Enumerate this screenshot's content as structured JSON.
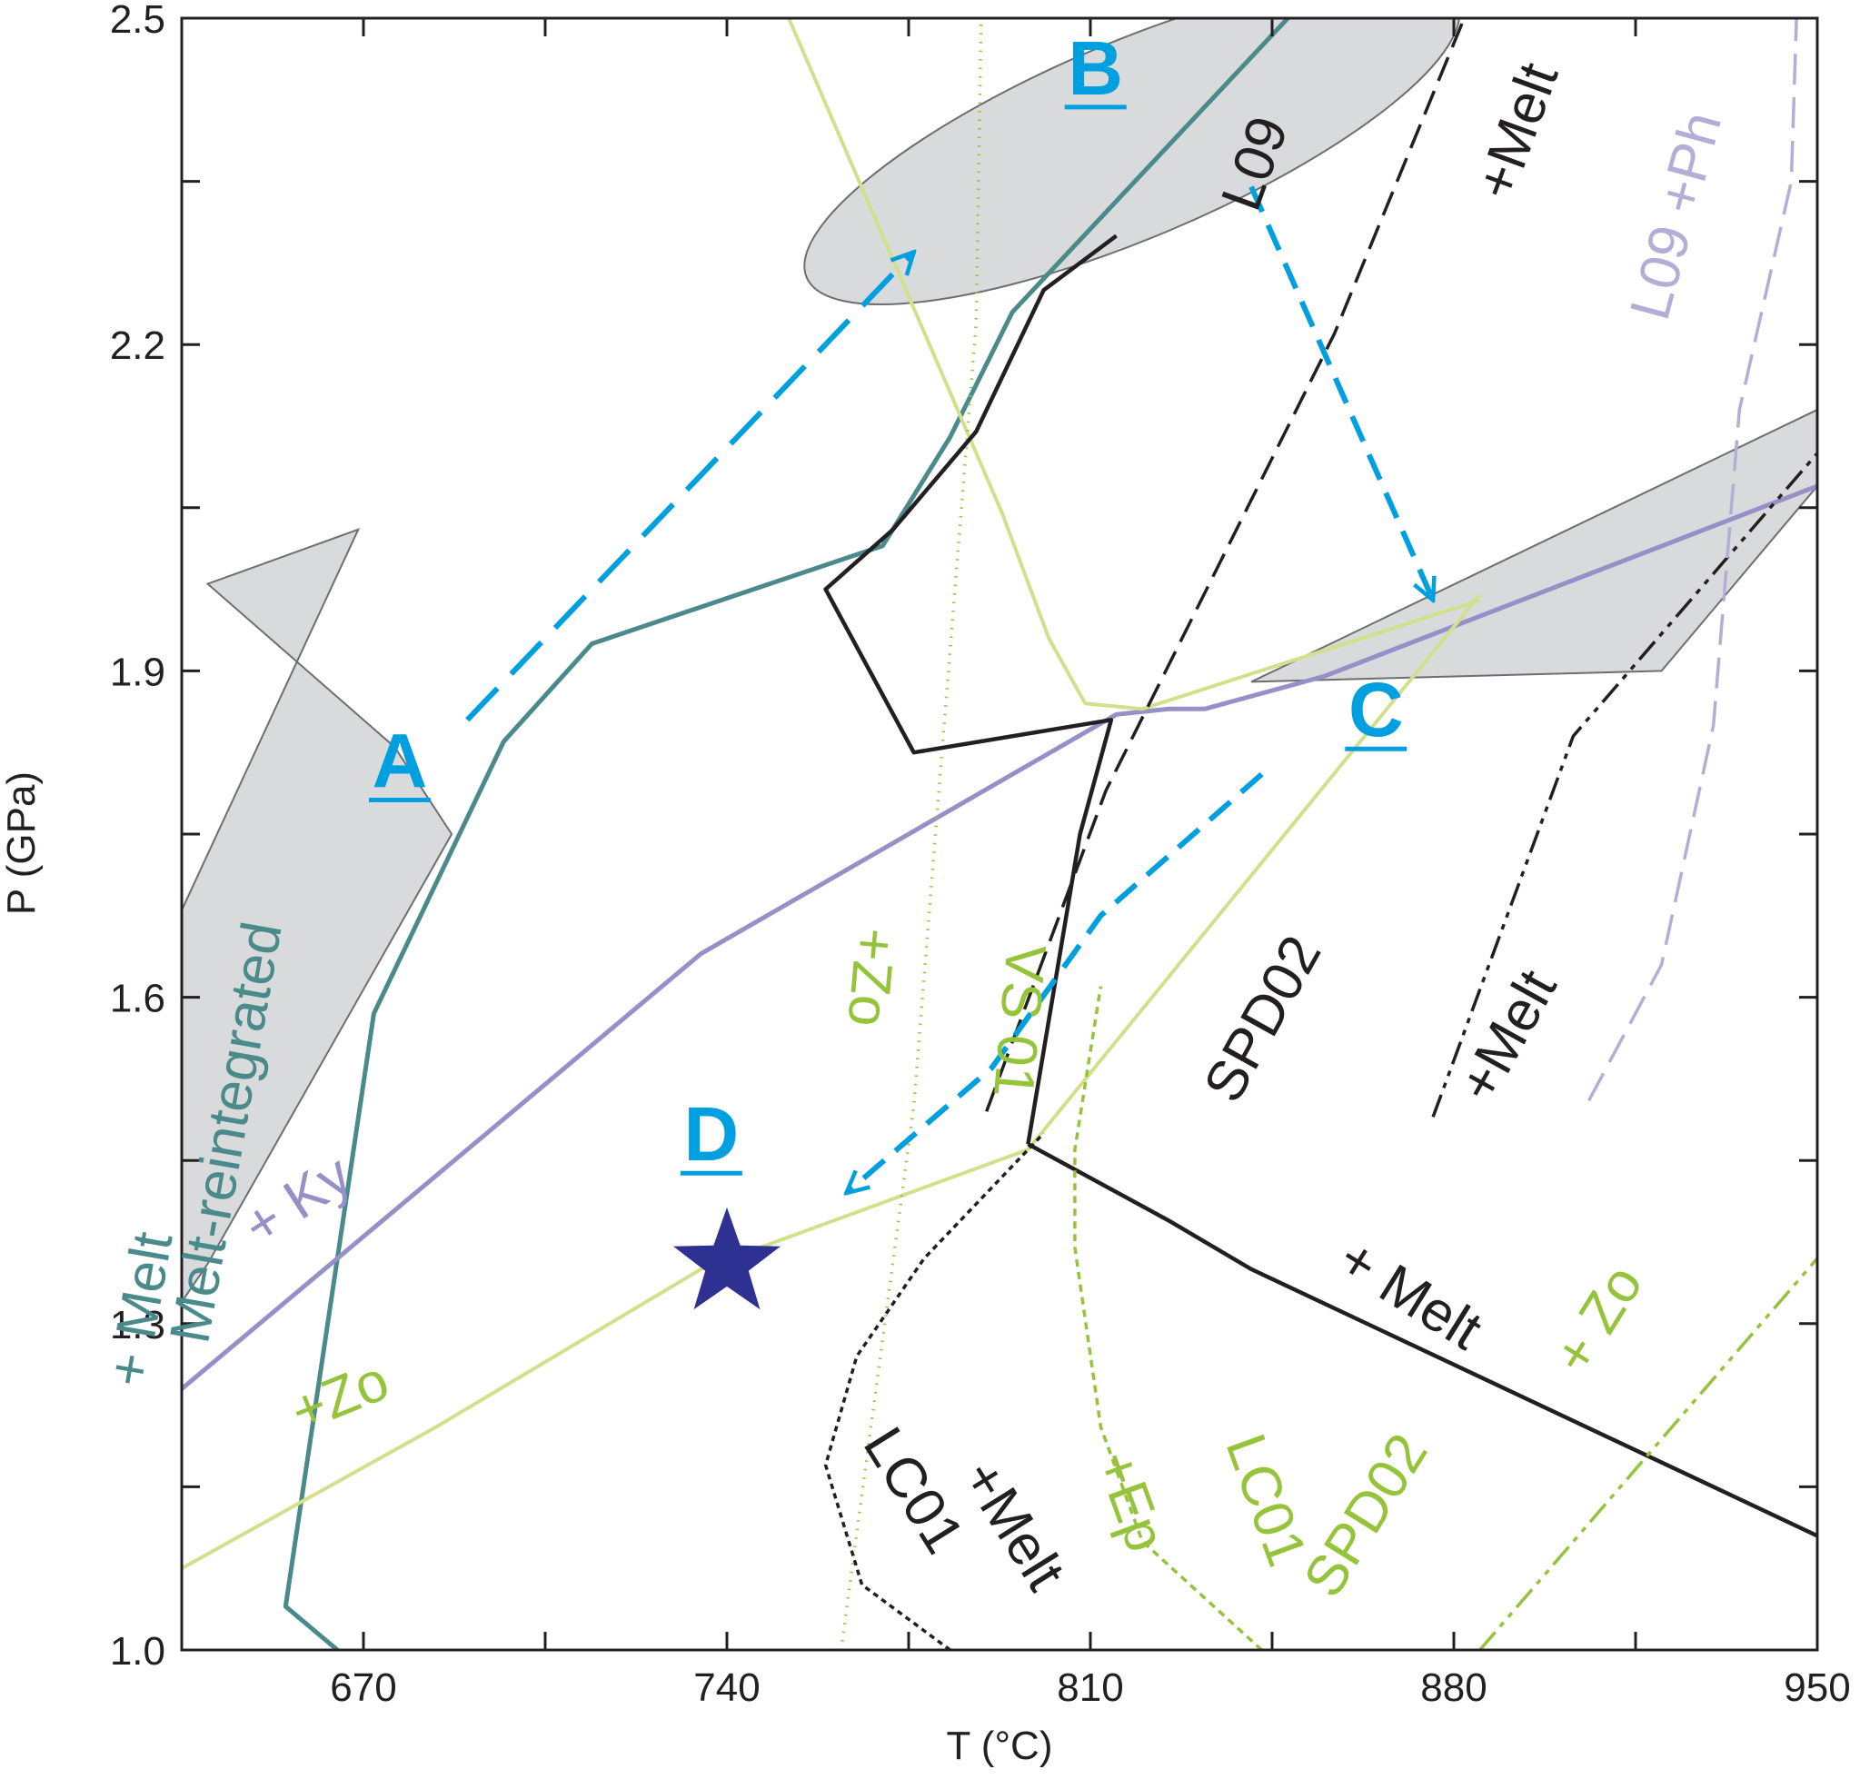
{
  "chart_data": {
    "type": "line",
    "xlabel": "T (°C)",
    "ylabel": "P (GPa)",
    "xlim": [
      635,
      950
    ],
    "ylim": [
      1.0,
      2.5
    ],
    "xticks": [
      {
        "v": 670,
        "label": "670"
      },
      {
        "v": 740,
        "label": "740"
      },
      {
        "v": 810,
        "label": "810"
      },
      {
        "v": 880,
        "label": "880"
      },
      {
        "v": 950,
        "label": "950"
      }
    ],
    "yticks": [
      {
        "v": 1.0,
        "label": "1.0"
      },
      {
        "v": 1.3,
        "label": "1.3"
      },
      {
        "v": 1.6,
        "label": "1.6"
      },
      {
        "v": 1.9,
        "label": "1.9"
      },
      {
        "v": 2.2,
        "label": "2.2"
      },
      {
        "v": 2.5,
        "label": "2.5"
      }
    ],
    "minor_xticks": [
      635,
      705,
      775,
      845,
      915
    ],
    "minor_yticks": [
      1.15,
      1.45,
      1.75,
      2.05,
      2.35
    ],
    "grid": false,
    "fields": [
      {
        "name": "A",
        "color": "#d9dadb",
        "points": [
          [
            635,
            1.32
          ],
          [
            640,
            1.355
          ],
          [
            687,
            1.75
          ],
          [
            676,
            1.83
          ],
          [
            640,
            1.98
          ],
          [
            669,
            2.03
          ],
          [
            635,
            1.68
          ]
        ]
      },
      {
        "name": "B",
        "color": "#d9dadb",
        "ellipse": {
          "cx": 818,
          "cy": 2.388,
          "rx": 68,
          "ry": 0.09,
          "angle": -0.4
        }
      },
      {
        "name": "C",
        "color": "#d9dadb",
        "points": [
          [
            841,
            1.89
          ],
          [
            920,
            1.9
          ],
          [
            950,
            2.07
          ],
          [
            950,
            2.14
          ]
        ]
      }
    ],
    "series": [
      {
        "name": "Melt-reintegrated + Melt",
        "color": "#4a8a8b",
        "width": 5,
        "dash": "",
        "points": [
          [
            665,
            1.0
          ],
          [
            655,
            1.04
          ],
          [
            672,
            1.585
          ],
          [
            697,
            1.835
          ],
          [
            714,
            1.925
          ],
          [
            770,
            2.015
          ],
          [
            783,
            2.115
          ],
          [
            795,
            2.23
          ],
          [
            850,
            2.51
          ]
        ]
      },
      {
        "name": "+ Ky",
        "color": "#9590c7",
        "width": 5,
        "dash": "",
        "points": [
          [
            635,
            1.24
          ],
          [
            735,
            1.64
          ],
          [
            815,
            1.86
          ],
          [
            825,
            1.865
          ],
          [
            832,
            1.865
          ],
          [
            855,
            1.895
          ],
          [
            950,
            2.07
          ]
        ]
      },
      {
        "name": "+Zo",
        "color": "#d2e08c",
        "width": 4,
        "dash": "",
        "points": [
          [
            635,
            1.075
          ],
          [
            684,
            1.205
          ],
          [
            735,
            1.35
          ],
          [
            798,
            1.46
          ],
          [
            885,
            1.97
          ]
        ]
      },
      {
        "name": "VS01",
        "color": "#d2e08c",
        "width": 4,
        "dash": "",
        "points": [
          [
            751,
            2.51
          ],
          [
            793,
            2.045
          ],
          [
            802,
            1.93
          ],
          [
            809,
            1.87
          ],
          [
            820,
            1.865
          ],
          [
            885,
            1.965
          ]
        ]
      },
      {
        "name": "+Zo VS01",
        "color": "#95c33a",
        "width": 3.5,
        "dash": "1.5 8",
        "points": [
          [
            762,
            1.0
          ],
          [
            776,
            1.5
          ],
          [
            788,
            2.22
          ],
          [
            789,
            2.51
          ]
        ]
      },
      {
        "name": "+ Melt",
        "color": "#231f20",
        "width": 4.5,
        "dash": "",
        "points": [
          [
            798,
            1.465
          ],
          [
            808,
            1.75
          ],
          [
            814,
            1.855
          ],
          [
            776,
            1.825
          ],
          [
            759,
            1.975
          ],
          [
            772,
            2.03
          ],
          [
            788,
            2.12
          ],
          [
            801,
            2.25
          ],
          [
            815,
            2.3
          ]
        ]
      },
      {
        "name": "+ Melt",
        "color": "#231f20",
        "width": 4.5,
        "dash": "",
        "points": [
          [
            798,
            1.465
          ],
          [
            825,
            1.395
          ],
          [
            841,
            1.35
          ],
          [
            950,
            1.105
          ]
        ]
      },
      {
        "name": "L09 +Melt",
        "color": "#231f20",
        "width": 3.5,
        "dash": "28 12",
        "points": [
          [
            790,
            1.495
          ],
          [
            813,
            1.79
          ],
          [
            857,
            2.21
          ],
          [
            882,
            2.5
          ]
        ]
      },
      {
        "name": "LC01 +Melt",
        "color": "#231f20",
        "width": 3.5,
        "dash": "6 5",
        "points": [
          [
            783,
            1.0
          ],
          [
            766,
            1.06
          ],
          [
            759,
            1.17
          ],
          [
            765,
            1.27
          ],
          [
            778,
            1.36
          ],
          [
            801,
            1.475
          ]
        ]
      },
      {
        "name": "LC01 +Ep",
        "color": "#95c33a",
        "width": 3.5,
        "dash": "8 6",
        "points": [
          [
            843,
            1.0
          ],
          [
            820,
            1.1
          ],
          [
            812,
            1.205
          ],
          [
            807,
            1.37
          ],
          [
            807,
            1.46
          ],
          [
            812,
            1.61
          ]
        ]
      },
      {
        "name": "SPD02 + Zo",
        "color": "#95c33a",
        "width": 3.5,
        "dash": "26 8 6 8 6 8",
        "points": [
          [
            885,
            1.0
          ],
          [
            950,
            1.36
          ]
        ]
      },
      {
        "name": "SPD02 +Melt",
        "color": "#231f20",
        "width": 3.5,
        "dash": "26 8 6 8 6 8",
        "points": [
          [
            876,
            1.49
          ],
          [
            903,
            1.84
          ],
          [
            950,
            2.1
          ]
        ]
      },
      {
        "name": "L09 +Ph",
        "color": "#b3aed6",
        "width": 3.5,
        "dash": "34 14",
        "points": [
          [
            906,
            1.505
          ],
          [
            920,
            1.63
          ],
          [
            930,
            1.85
          ],
          [
            935,
            2.14
          ],
          [
            945,
            2.35
          ],
          [
            946,
            2.5
          ]
        ]
      }
    ],
    "paths": [
      {
        "label": "A",
        "points": [
          [
            690,
            1.855
          ],
          [
            776,
            2.285
          ]
        ]
      },
      {
        "label": "B",
        "points": [
          [
            841,
            2.345
          ],
          [
            876,
            1.965
          ]
        ]
      },
      {
        "label": "C",
        "points": [
          [
            843,
            1.805
          ],
          [
            812,
            1.675
          ],
          [
            791,
            1.535
          ],
          [
            763,
            1.42
          ]
        ]
      }
    ],
    "path_color": "#009fdf",
    "sample": {
      "label": "D",
      "t": 740,
      "p": 1.355,
      "color": "#2e3092"
    },
    "field_labels": [
      {
        "text": "A",
        "t": 677,
        "p": 1.793
      },
      {
        "text": "B",
        "t": 811,
        "p": 2.43
      },
      {
        "text": "C",
        "t": 865,
        "p": 1.84
      },
      {
        "text": "D",
        "t": 737,
        "p": 1.45
      }
    ],
    "curve_labels": [
      {
        "text": "Melt-reintegrated",
        "t": 640,
        "p": 1.28,
        "rot": -80,
        "color": "#4a8a8b"
      },
      {
        "text": "+ Melt",
        "t": 628,
        "p": 1.24,
        "rot": -80,
        "color": "#4a8a8b"
      },
      {
        "text": "+ Ky",
        "t": 650,
        "p": 1.37,
        "rot": -33,
        "color": "#9590c7"
      },
      {
        "text": "+Zo",
        "t": 658,
        "p": 1.2,
        "rot": -22,
        "color": "#95c33a"
      },
      {
        "text": "+Zo",
        "t": 765,
        "p": 1.665,
        "rot": 95,
        "color": "#95c33a"
      },
      {
        "text": "VS 01",
        "t": 794,
        "p": 1.65,
        "rot": 95,
        "color": "#95c33a"
      },
      {
        "text": "+ Melt",
        "t": 857,
        "p": 1.35,
        "rot": 32,
        "color": "#231f20"
      },
      {
        "text": "+Melt",
        "t": 785,
        "p": 1.16,
        "rot": 58,
        "color": "#231f20"
      },
      {
        "text": "LC01",
        "t": 766,
        "p": 1.19,
        "rot": 58,
        "color": "#231f20"
      },
      {
        "text": "LC01",
        "t": 836,
        "p": 1.19,
        "rot": 70,
        "color": "#95c33a"
      },
      {
        "text": "+Ep",
        "t": 811,
        "p": 1.175,
        "rot": 70,
        "color": "#95c33a"
      },
      {
        "text": "SPD02",
        "t": 857,
        "p": 1.045,
        "rot": -58,
        "color": "#95c33a"
      },
      {
        "text": "+ Zo",
        "t": 905,
        "p": 1.25,
        "rot": -58,
        "color": "#95c33a"
      },
      {
        "text": "SPD02",
        "t": 838,
        "p": 1.5,
        "rot": -61,
        "color": "#231f20"
      },
      {
        "text": "+Melt",
        "t": 887,
        "p": 1.5,
        "rot": -61,
        "color": "#231f20"
      },
      {
        "text": "L09",
        "t": 842,
        "p": 2.32,
        "rot": -70,
        "color": "#231f20"
      },
      {
        "text": "+Melt",
        "t": 891,
        "p": 2.33,
        "rot": -70,
        "color": "#231f20"
      },
      {
        "text": "L09 +Ph",
        "t": 921,
        "p": 2.22,
        "rot": -75,
        "color": "#b3aed6"
      }
    ]
  }
}
